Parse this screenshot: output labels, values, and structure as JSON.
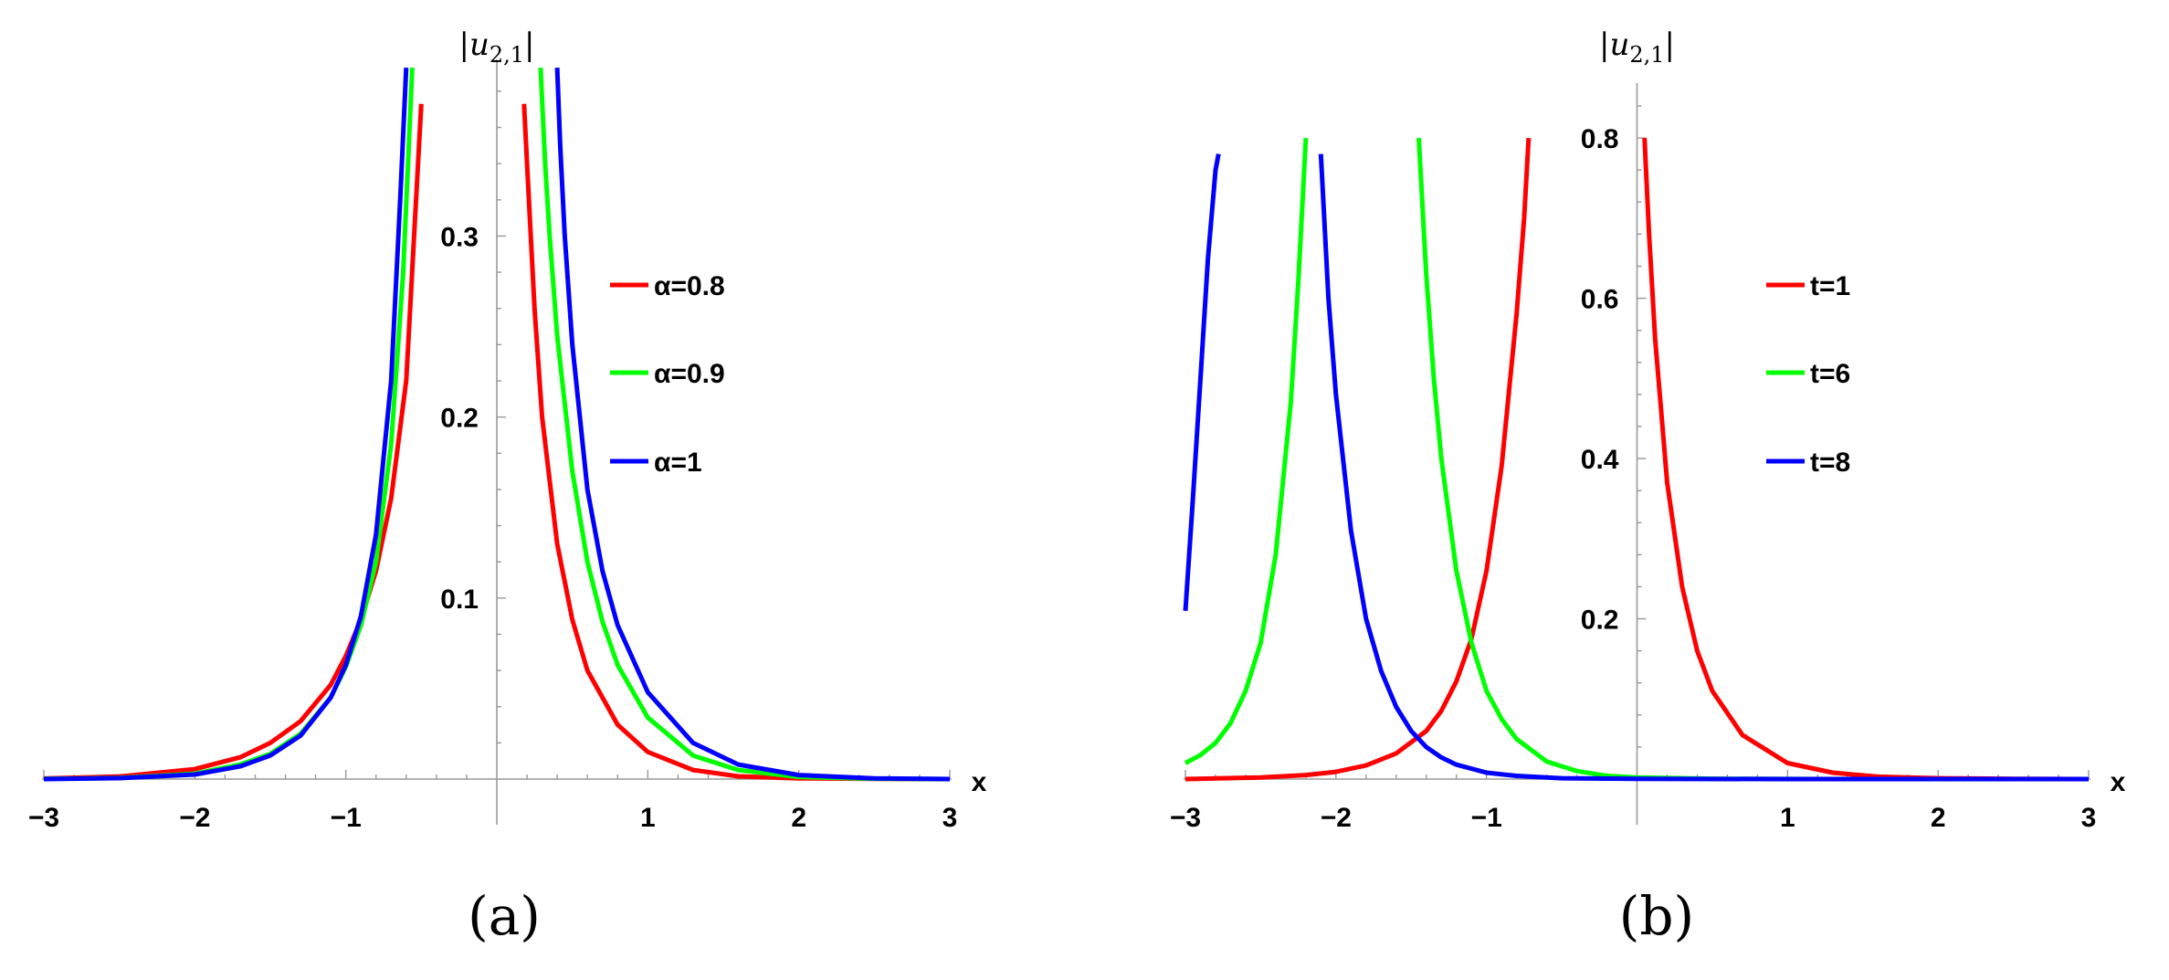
{
  "chart_data": [
    {
      "type": "line",
      "panel_label": "(a)",
      "xlabel": "x",
      "ylabel": {
        "main": "|u",
        "sub": "2,1",
        "end": "|"
      },
      "xlim": [
        -3,
        3
      ],
      "ylim": [
        0,
        0.385
      ],
      "xticks": [
        -3,
        -2,
        -1,
        1,
        2,
        3
      ],
      "xtick_labels": [
        "−3",
        "−2",
        "−1",
        "1",
        "2",
        "3"
      ],
      "yticks": [
        0.1,
        0.2,
        0.3
      ],
      "ytick_labels": [
        "0.1",
        "0.2",
        "0.3"
      ],
      "legend_position": "right",
      "series": [
        {
          "name": "α=0.8",
          "color": "#ff0000",
          "x": [
            -3.0,
            -2.5,
            -2.0,
            -1.7,
            -1.5,
            -1.3,
            -1.1,
            -1.0,
            -0.9,
            -0.8,
            -0.7,
            -0.6,
            -0.5,
            null,
            0.18,
            0.2,
            0.25,
            0.3,
            0.4,
            0.5,
            0.6,
            0.8,
            1.0,
            1.3,
            1.6,
            2.0,
            2.5,
            3.0
          ],
          "y": [
            0.0003,
            0.0014,
            0.0055,
            0.012,
            0.02,
            0.032,
            0.052,
            0.068,
            0.088,
            0.115,
            0.155,
            0.22,
            0.373,
            null,
            0.373,
            0.34,
            0.26,
            0.2,
            0.13,
            0.088,
            0.06,
            0.03,
            0.015,
            0.005,
            0.0015,
            0.0004,
            0.0001,
            0.0
          ]
        },
        {
          "name": "α=0.9",
          "color": "#00ff00",
          "x": [
            -3.0,
            -2.5,
            -2.0,
            -1.7,
            -1.5,
            -1.3,
            -1.1,
            -1.0,
            -0.9,
            -0.8,
            -0.7,
            -0.62,
            -0.56,
            null,
            0.29,
            0.32,
            0.35,
            0.4,
            0.5,
            0.6,
            0.7,
            0.8,
            1.0,
            1.3,
            1.6,
            2.0,
            2.5,
            3.0
          ],
          "y": [
            0.0001,
            0.0006,
            0.003,
            0.008,
            0.014,
            0.025,
            0.045,
            0.062,
            0.085,
            0.12,
            0.185,
            0.28,
            0.393,
            null,
            0.393,
            0.34,
            0.3,
            0.245,
            0.17,
            0.12,
            0.087,
            0.063,
            0.034,
            0.013,
            0.005,
            0.0012,
            0.0002,
            0.0
          ]
        },
        {
          "name": "α=1",
          "color": "#0000ff",
          "x": [
            -3.0,
            -2.5,
            -2.0,
            -1.7,
            -1.5,
            -1.3,
            -1.1,
            -1.0,
            -0.9,
            -0.8,
            -0.7,
            -0.64,
            -0.6,
            null,
            0.4,
            0.42,
            0.45,
            0.5,
            0.6,
            0.7,
            0.8,
            1.0,
            1.3,
            1.6,
            2.0,
            2.5,
            3.0
          ],
          "y": [
            0.0,
            0.0005,
            0.0025,
            0.007,
            0.013,
            0.024,
            0.045,
            0.063,
            0.09,
            0.135,
            0.22,
            0.32,
            0.393,
            null,
            0.393,
            0.35,
            0.3,
            0.24,
            0.16,
            0.115,
            0.085,
            0.048,
            0.02,
            0.008,
            0.0022,
            0.0004,
            0.0
          ]
        }
      ]
    },
    {
      "type": "line",
      "panel_label": "(b)",
      "xlabel": "x",
      "ylabel": {
        "main": "|u",
        "sub": "2,1",
        "end": "|"
      },
      "xlim": [
        -3,
        3
      ],
      "ylim": [
        0,
        0.84
      ],
      "xticks": [
        -3,
        -2,
        -1,
        1,
        2,
        3
      ],
      "xtick_labels": [
        "−3",
        "−2",
        "−1",
        "1",
        "2",
        "3"
      ],
      "yticks": [
        0.2,
        0.4,
        0.6,
        0.8
      ],
      "ytick_labels": [
        "0.2",
        "0.4",
        "0.6",
        "0.8"
      ],
      "legend_position": "right",
      "series": [
        {
          "name": "t=1",
          "color": "#ff0000",
          "x": [
            -3.0,
            -2.5,
            -2.2,
            -2.0,
            -1.8,
            -1.6,
            -1.4,
            -1.3,
            -1.2,
            -1.1,
            -1.0,
            -0.9,
            -0.8,
            -0.75,
            -0.72,
            null,
            0.05,
            0.08,
            0.12,
            0.2,
            0.3,
            0.4,
            0.5,
            0.7,
            1.0,
            1.3,
            1.6,
            2.0,
            2.5,
            3.0
          ],
          "y": [
            0.0,
            0.002,
            0.005,
            0.009,
            0.017,
            0.032,
            0.06,
            0.085,
            0.122,
            0.175,
            0.26,
            0.39,
            0.58,
            0.7,
            0.8,
            null,
            0.8,
            0.68,
            0.55,
            0.37,
            0.24,
            0.16,
            0.11,
            0.055,
            0.02,
            0.008,
            0.003,
            0.001,
            0.0002,
            0.0
          ]
        },
        {
          "name": "t=6",
          "color": "#00ff00",
          "x": [
            -3.0,
            -2.9,
            -2.8,
            -2.7,
            -2.6,
            -2.5,
            -2.4,
            -2.3,
            -2.25,
            -2.2,
            null,
            -1.45,
            -1.4,
            -1.35,
            -1.3,
            -1.2,
            -1.1,
            -1.0,
            -0.9,
            -0.8,
            -0.6,
            -0.4,
            -0.2,
            0.0,
            0.5,
            1.0,
            2.0,
            3.0
          ],
          "y": [
            0.02,
            0.03,
            0.045,
            0.07,
            0.11,
            0.17,
            0.28,
            0.47,
            0.62,
            0.8,
            null,
            0.8,
            0.63,
            0.5,
            0.4,
            0.26,
            0.17,
            0.11,
            0.075,
            0.05,
            0.022,
            0.01,
            0.004,
            0.002,
            0.0005,
            0.0001,
            0.0,
            0.0
          ]
        },
        {
          "name": "t=8",
          "color": "#0000ff",
          "x": [
            -3.0,
            -2.95,
            -2.9,
            -2.85,
            -2.8,
            -2.78,
            null,
            -2.1,
            -2.05,
            -2.0,
            -1.9,
            -1.8,
            -1.7,
            -1.6,
            -1.5,
            -1.4,
            -1.3,
            -1.2,
            -1.0,
            -0.8,
            -0.5,
            0.0,
            1.0,
            2.0,
            3.0
          ],
          "y": [
            0.21,
            0.35,
            0.5,
            0.65,
            0.76,
            0.78,
            null,
            0.78,
            0.6,
            0.48,
            0.31,
            0.2,
            0.135,
            0.09,
            0.06,
            0.04,
            0.027,
            0.018,
            0.008,
            0.004,
            0.001,
            0.0002,
            0.0,
            0.0,
            0.0
          ]
        }
      ]
    }
  ]
}
